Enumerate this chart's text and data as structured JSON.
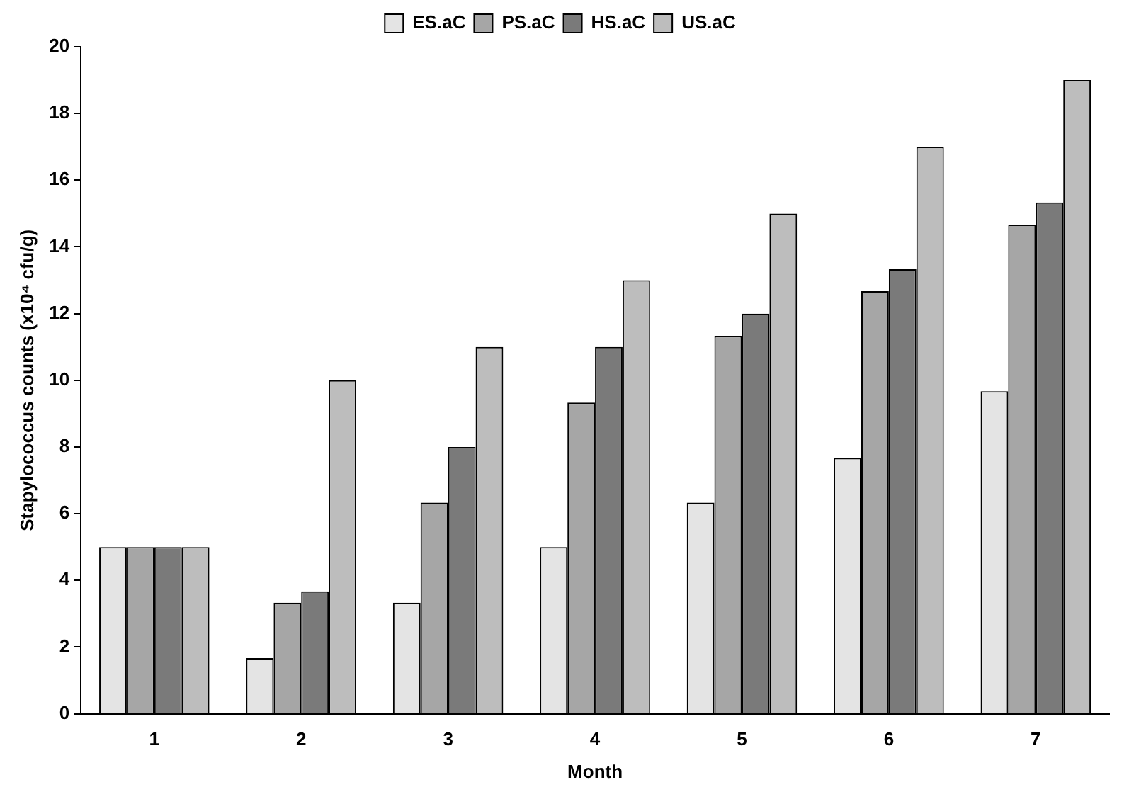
{
  "chart_data": {
    "type": "bar",
    "xlabel": "Month",
    "ylabel": "Stapylococcus counts (x10⁴ cfu/g)",
    "categories": [
      "1",
      "2",
      "3",
      "4",
      "5",
      "6",
      "7"
    ],
    "series": [
      {
        "name": "ES.aC",
        "color": "#e4e4e4",
        "values": [
          5,
          1.67,
          3.33,
          5,
          6.33,
          7.67,
          9.67
        ]
      },
      {
        "name": "PS.aC",
        "color": "#a6a6a6",
        "values": [
          5,
          3.33,
          6.33,
          9.33,
          11.33,
          12.67,
          14.67
        ]
      },
      {
        "name": "HS.aC",
        "color": "#7a7a7a",
        "values": [
          5,
          3.67,
          8,
          11,
          12,
          13.33,
          15.33
        ]
      },
      {
        "name": "US.aC",
        "color": "#bdbdbd",
        "values": [
          5,
          10,
          11,
          13,
          15,
          17,
          19
        ]
      }
    ],
    "ylim": [
      0,
      20
    ],
    "yticks": [
      0,
      2,
      4,
      6,
      8,
      10,
      12,
      14,
      16,
      18,
      20
    ],
    "grid": false,
    "legend": "top"
  }
}
